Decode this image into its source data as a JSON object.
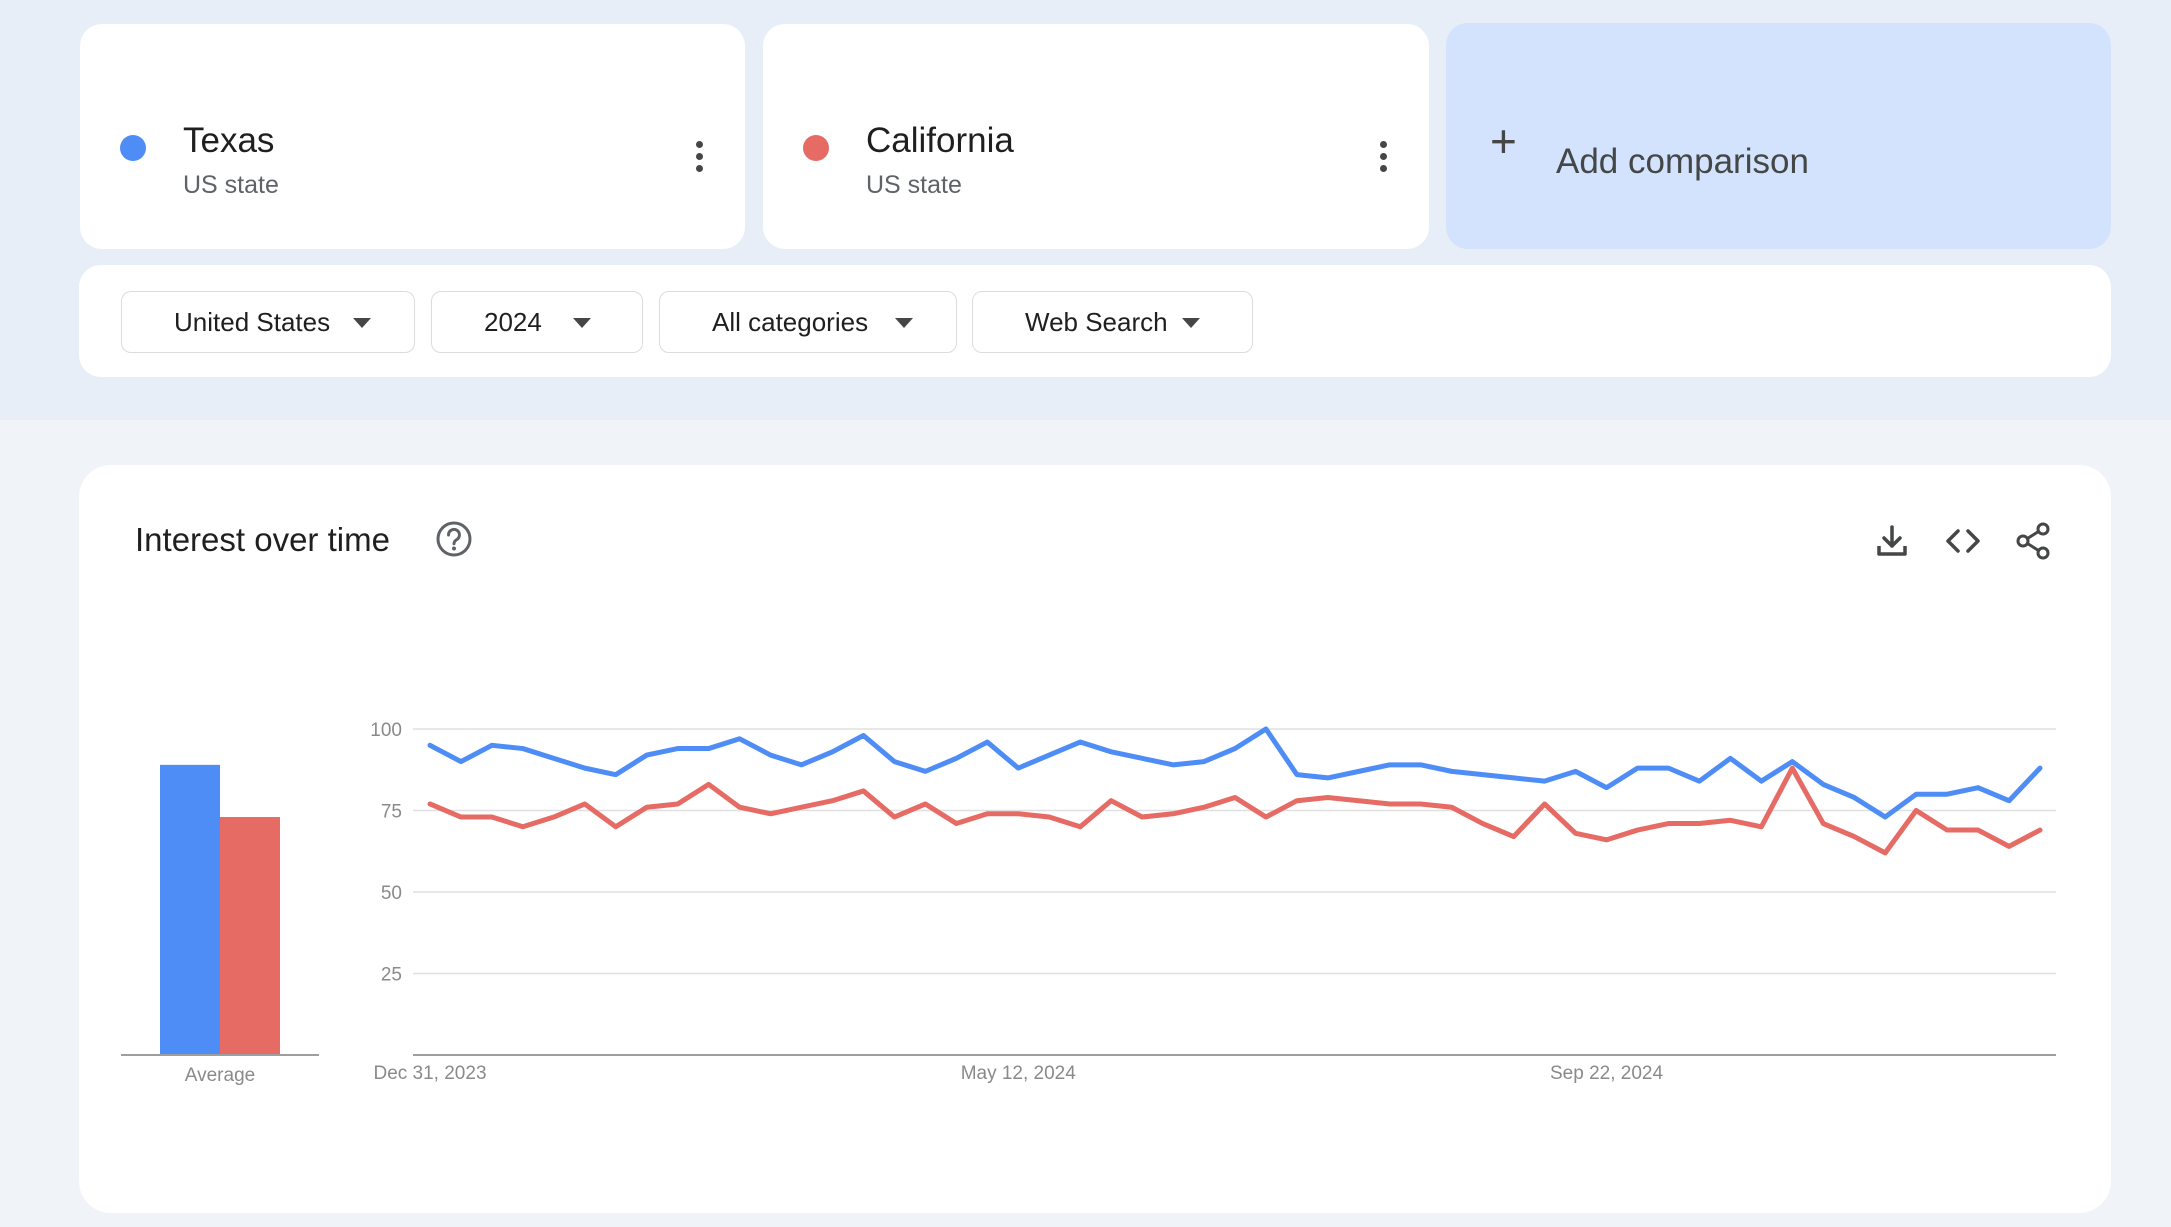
{
  "terms": [
    {
      "name": "Texas",
      "type": "US state",
      "color": "#4e8df5"
    },
    {
      "name": "California",
      "type": "US state",
      "color": "#e66b64"
    }
  ],
  "add_comparison": {
    "label": "Add comparison",
    "icon": "plus-icon"
  },
  "filters": {
    "region": "United States",
    "period": "2024",
    "category": "All categories",
    "search_type": "Web Search"
  },
  "chart_panel": {
    "title": "Interest over time",
    "help_icon": "help-circle-icon",
    "tools": [
      "download-icon",
      "embed-code-icon",
      "share-icon"
    ]
  },
  "chart_data": {
    "type": "line",
    "title": "Interest over time",
    "ylim": [
      0,
      100
    ],
    "yticks": [
      25,
      50,
      75,
      100
    ],
    "grid": true,
    "x_tick_labels": [
      "Dec 31, 2023",
      "May 12, 2024",
      "Sep 22, 2024"
    ],
    "x_tick_index": [
      0,
      19,
      38
    ],
    "average_label": "Average",
    "averages": [
      89,
      73
    ],
    "series": [
      {
        "name": "Texas",
        "color": "#4e8df5",
        "values": [
          95,
          90,
          95,
          94,
          91,
          88,
          86,
          92,
          94,
          94,
          97,
          92,
          89,
          93,
          98,
          90,
          87,
          91,
          96,
          88,
          92,
          96,
          93,
          91,
          89,
          90,
          94,
          100,
          86,
          85,
          87,
          89,
          89,
          87,
          86,
          85,
          84,
          87,
          82,
          88,
          88,
          84,
          91,
          84,
          90,
          83,
          79,
          73,
          80,
          80,
          82,
          78,
          88
        ]
      },
      {
        "name": "California",
        "color": "#e66b64",
        "values": [
          77,
          73,
          73,
          70,
          73,
          77,
          70,
          76,
          77,
          83,
          76,
          74,
          76,
          78,
          81,
          73,
          77,
          71,
          74,
          74,
          73,
          70,
          78,
          73,
          74,
          76,
          79,
          73,
          78,
          79,
          78,
          77,
          77,
          76,
          71,
          67,
          77,
          68,
          66,
          69,
          71,
          71,
          72,
          70,
          88,
          71,
          67,
          62,
          75,
          69,
          69,
          64,
          69
        ]
      }
    ]
  }
}
